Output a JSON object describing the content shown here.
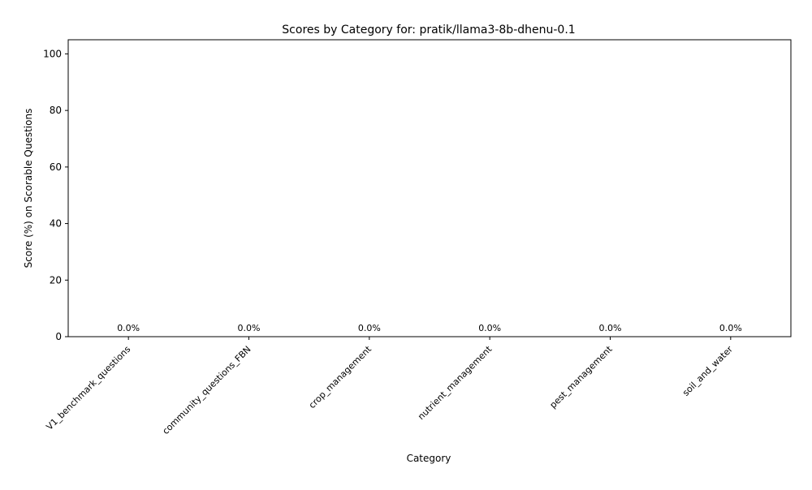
{
  "chart_data": {
    "type": "bar",
    "title": "Scores by Category for: pratik/llama3-8b-dhenu-0.1",
    "xlabel": "Category",
    "ylabel": "Score (%) on Scorable Questions",
    "categories": [
      "V1_benchmark_questions",
      "community_questions_FBN",
      "crop_management",
      "nutrient_management",
      "pest_management",
      "soil_and_water"
    ],
    "values": [
      0,
      0,
      0,
      0,
      0,
      0
    ],
    "value_labels": [
      "0.0%",
      "0.0%",
      "0.0%",
      "0.0%",
      "0.0%",
      "0.0%"
    ],
    "ylim": [
      0,
      105
    ],
    "yticks": [
      0,
      20,
      40,
      60,
      80,
      100
    ],
    "grid": false,
    "bar_color": "#1f77b4"
  }
}
